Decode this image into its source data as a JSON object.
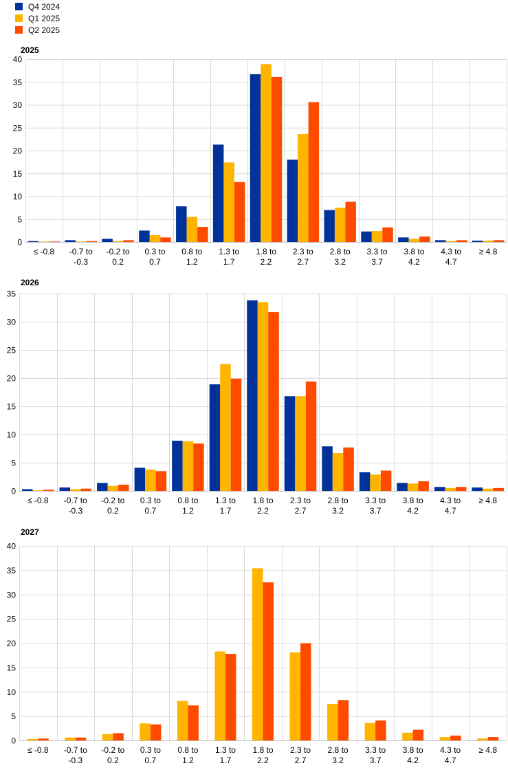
{
  "legend": [
    {
      "name": "Q4 2024",
      "color": "#003299"
    },
    {
      "name": "Q1 2025",
      "color": "#FFB400"
    },
    {
      "name": "Q2 2025",
      "color": "#FF4B00"
    }
  ],
  "chart_data": [
    {
      "type": "bar",
      "title": "2025",
      "categories": [
        "≤ -0.8",
        "-0.7  to -0.3",
        "-0.2  to 0.2",
        "0.3  to 0.7",
        "0.8  to 1.2",
        "1.3  to 1.7",
        "1.8  to 2.2",
        "2.3  to 2.7",
        "2.8  to 3.2",
        "3.3  to 3.7",
        "3.8  to 4.2",
        "4.3  to 4.7",
        "≥ 4.8"
      ],
      "ylim": [
        0,
        40
      ],
      "yticks": [
        0,
        5,
        10,
        15,
        20,
        25,
        30,
        35,
        40
      ],
      "grid": true,
      "series": [
        {
          "name": "Q4 2024",
          "values": [
            0.2,
            0.4,
            0.7,
            2.5,
            7.8,
            21.3,
            36.7,
            18.0,
            7.0,
            2.3,
            1.0,
            0.4,
            0.3
          ]
        },
        {
          "name": "Q1 2025",
          "values": [
            0.0,
            0.1,
            0.2,
            1.5,
            5.5,
            17.4,
            38.9,
            23.6,
            7.5,
            2.4,
            0.7,
            0.2,
            0.3
          ]
        },
        {
          "name": "Q2 2025",
          "values": [
            0.1,
            0.2,
            0.4,
            1.0,
            3.3,
            13.1,
            36.1,
            30.6,
            8.8,
            3.2,
            1.2,
            0.4,
            0.4
          ]
        }
      ]
    },
    {
      "type": "bar",
      "title": "2026",
      "categories": [
        "≤ -0.8",
        "-0.7  to -0.3",
        "-0.2  to 0.2",
        "0.3  to 0.7",
        "0.8  to 1.2",
        "1.3  to 1.7",
        "1.8  to 2.2",
        "2.3  to 2.7",
        "2.8  to 3.2",
        "3.3  to 3.7",
        "3.8  to 4.2",
        "4.3  to 4.7",
        "≥ 4.8"
      ],
      "ylim": [
        0,
        35
      ],
      "yticks": [
        0,
        5,
        10,
        15,
        20,
        25,
        30,
        35
      ],
      "grid": true,
      "series": [
        {
          "name": "Q4 2024",
          "values": [
            0.3,
            0.6,
            1.4,
            4.1,
            8.9,
            18.9,
            33.8,
            16.8,
            7.9,
            3.3,
            1.4,
            0.7,
            0.6
          ]
        },
        {
          "name": "Q1 2025",
          "values": [
            0.1,
            0.3,
            0.9,
            3.8,
            8.8,
            22.5,
            33.5,
            16.8,
            6.7,
            2.9,
            1.3,
            0.5,
            0.4
          ]
        },
        {
          "name": "Q2 2025",
          "values": [
            0.2,
            0.4,
            1.1,
            3.5,
            8.4,
            19.9,
            31.7,
            19.4,
            7.7,
            3.6,
            1.7,
            0.7,
            0.5
          ]
        }
      ]
    },
    {
      "type": "bar",
      "title": "2027",
      "categories": [
        "≤ -0.8",
        "-0.7  to -0.3",
        "-0.2  to 0.2",
        "0.3  to 0.7",
        "0.8  to 1.2",
        "1.3  to 1.7",
        "1.8  to 2.2",
        "2.3  to 2.7",
        "2.8  to 3.2",
        "3.3  to 3.7",
        "3.8  to 4.2",
        "4.3  to 4.7",
        "≥ 4.8"
      ],
      "ylim": [
        0,
        40
      ],
      "yticks": [
        0,
        5,
        10,
        15,
        20,
        25,
        30,
        35,
        40
      ],
      "grid": true,
      "series": [
        {
          "name": "Q1 2025",
          "values": [
            0.3,
            0.6,
            1.3,
            3.5,
            8.1,
            18.3,
            35.4,
            18.1,
            7.5,
            3.6,
            1.6,
            0.7,
            0.4
          ]
        },
        {
          "name": "Q2 2025",
          "values": [
            0.4,
            0.6,
            1.5,
            3.3,
            7.2,
            17.8,
            32.5,
            20.0,
            8.3,
            4.1,
            2.2,
            1.0,
            0.7
          ]
        }
      ]
    }
  ]
}
